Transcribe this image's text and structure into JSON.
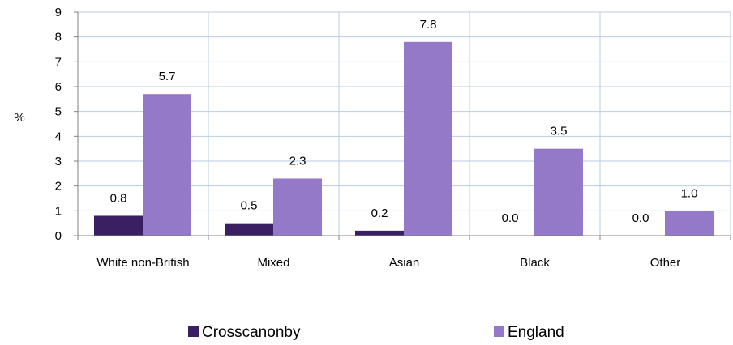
{
  "chart_data": {
    "type": "bar",
    "ylabel": "%",
    "ylim": [
      0,
      9
    ],
    "yticks": [
      0,
      1,
      2,
      3,
      4,
      5,
      6,
      7,
      8,
      9
    ],
    "grid": true,
    "legend_position": "bottom",
    "categories": [
      "White non-British",
      "Mixed",
      "Asian",
      "Black",
      "Other"
    ],
    "series": [
      {
        "name": "Crosscanonby",
        "color": "#3b1f63",
        "values": [
          0.8,
          0.5,
          0.2,
          0.0,
          0.0
        ],
        "labels": [
          "0.8",
          "0.5",
          "0.2",
          "0.0",
          "0.0"
        ]
      },
      {
        "name": "England",
        "color": "#9479c8",
        "values": [
          5.7,
          2.3,
          7.8,
          3.5,
          1.0
        ],
        "labels": [
          "5.7",
          "2.3",
          "7.8",
          "3.5",
          "1.0"
        ]
      }
    ]
  }
}
